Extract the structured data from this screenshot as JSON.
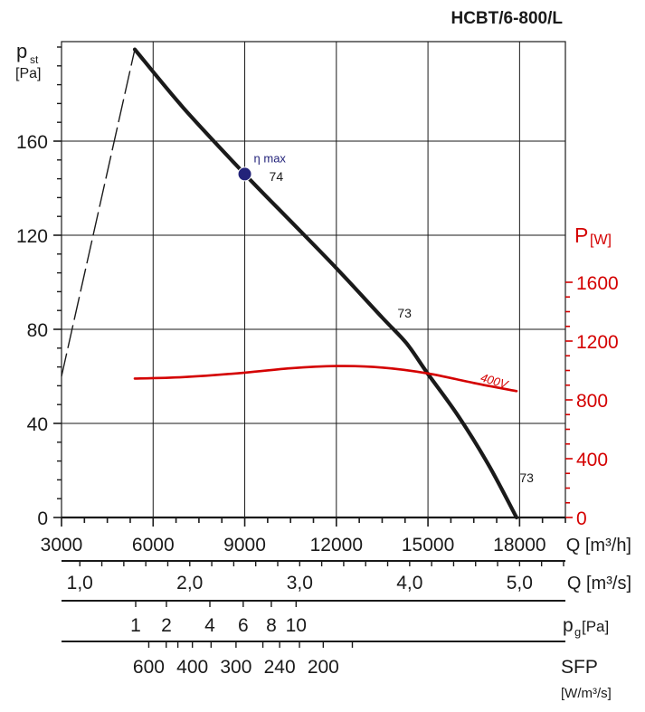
{
  "chart_data": {
    "type": "line",
    "title": "HCBT/6-800/L",
    "left_axis": {
      "label": "p",
      "label_sub": "st",
      "unit": "[Pa]",
      "range": [
        0,
        200
      ],
      "ticks": [
        "0",
        "40",
        "80",
        "120",
        "160"
      ],
      "tick_values": [
        0,
        40,
        80,
        120,
        160
      ],
      "minor_step": 8
    },
    "right_axis": {
      "label": "P",
      "unit": "[W]",
      "range": [
        0,
        1600
      ],
      "ticks": [
        "0",
        "400",
        "800",
        "1200",
        "1600"
      ],
      "tick_values": [
        0,
        400,
        800,
        1200,
        1600
      ],
      "color": "#d40000"
    },
    "x_axis": {
      "unit_label": "Q [m³/h]",
      "range": [
        3000,
        19500
      ],
      "ticks": [
        "3000",
        "6000",
        "9000",
        "12000",
        "15000",
        "18000"
      ],
      "tick_values": [
        3000,
        6000,
        9000,
        12000,
        15000,
        18000
      ],
      "grid": [
        3000,
        6000,
        9000,
        12000,
        15000,
        18000,
        19500
      ],
      "minor_step": 750
    },
    "q_ms_scale": {
      "unit_label": "Q [m³/s]",
      "ticks": [
        "1,0",
        "2,0",
        "3,0",
        "4,0",
        "5,0"
      ],
      "tick_values": [
        1.0,
        2.0,
        3.0,
        4.0,
        5.0
      ],
      "minor_step": 0.2
    },
    "pg_scale": {
      "unit_label": "p",
      "unit_sub": "g",
      "unit_tail": "[Pa]",
      "ticks": [
        "1",
        "2",
        "4",
        "6",
        "8",
        "10"
      ],
      "tick_values": [
        1,
        2,
        4,
        6,
        8,
        10
      ]
    },
    "sfp_scale": {
      "unit_label": "SFP",
      "unit_label2": "[W/m³/s]",
      "ticks": [
        "600",
        "400",
        "300",
        "240",
        "200"
      ],
      "tick_values": [
        600,
        400,
        300,
        240,
        200
      ],
      "minor_values": [
        500,
        450,
        350,
        260,
        220,
        180
      ]
    },
    "series": [
      {
        "name": "pressure",
        "color": "#1a1a1a",
        "x": [
          5400,
          7000,
          9000,
          10500,
          12000,
          13500,
          14300,
          15000,
          16000,
          17000,
          17900
        ],
        "y": [
          199,
          174,
          146,
          126,
          106,
          85,
          74,
          61,
          43,
          22,
          0
        ]
      },
      {
        "name": "stall-region",
        "color": "#1a1a1a",
        "dashed": true,
        "x": [
          3000,
          5400
        ],
        "y": [
          60,
          199
        ]
      },
      {
        "name": "400V",
        "color": "#d40000",
        "axis": "right",
        "x": [
          5400,
          7000,
          9000,
          10500,
          12000,
          13500,
          15000,
          16500,
          17900
        ],
        "y": [
          945,
          955,
          985,
          1015,
          1030,
          1020,
          980,
          915,
          860
        ]
      }
    ],
    "annotations": [
      {
        "text": "η max",
        "x": 9000,
        "y": 146,
        "kind": "point",
        "color": "#23237a"
      },
      {
        "text": "74",
        "x": 9800,
        "y": 143,
        "kind": "label"
      },
      {
        "text": "73",
        "x": 14000,
        "y": 85,
        "kind": "label"
      },
      {
        "text": "73",
        "x": 18000,
        "y": 15,
        "kind": "label"
      },
      {
        "text": "400V",
        "x": 16700,
        "y": 58,
        "kind": "series-label",
        "color": "#d40000"
      }
    ]
  }
}
